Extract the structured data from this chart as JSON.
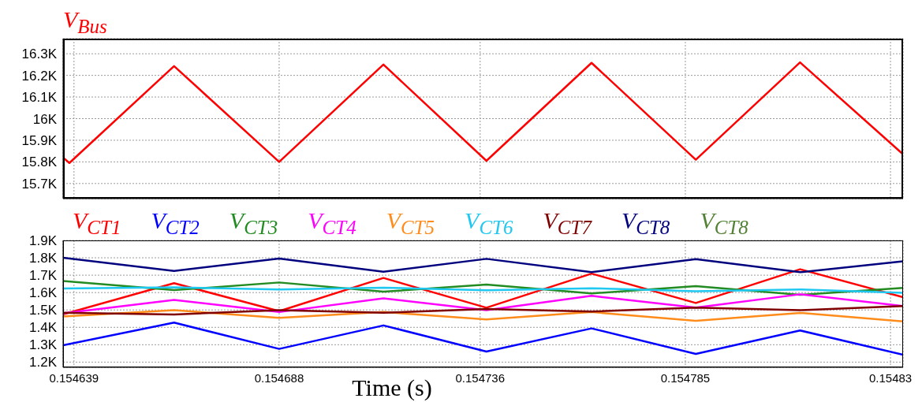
{
  "chart_data": [
    {
      "type": "line",
      "title": "V$_{Bus}$",
      "x": [
        0.1546364,
        0.1546379,
        0.1546629,
        0.154688,
        0.1547129,
        0.1547375,
        0.1547626,
        0.1547875,
        0.1548124,
        0.154837
      ],
      "series": [
        {
          "color": "#ff0000",
          "values": [
            15820,
            15795,
            16243,
            15800,
            16250,
            15805,
            16258,
            15810,
            16260,
            15835
          ]
        }
      ],
      "xlim": [
        0.1546364,
        0.154837
      ],
      "xticks": [
        0.154639,
        0.154688,
        0.154736,
        0.154785,
        0.154834
      ],
      "ylim": [
        15630,
        16370
      ],
      "yticks": [
        {
          "value": 15700,
          "label": "15.7K"
        },
        {
          "value": 15800,
          "label": "15.8K"
        },
        {
          "value": 15900,
          "label": "15.9K"
        },
        {
          "value": 16000,
          "label": "16K"
        },
        {
          "value": 16100,
          "label": "16.1K"
        },
        {
          "value": 16200,
          "label": "16.2K"
        },
        {
          "value": 16300,
          "label": "16.3K"
        }
      ],
      "grid": true,
      "tick_labels": "y"
    },
    {
      "type": "line",
      "xlabel": "Time (s)",
      "x": [
        0.1546364,
        0.1546629,
        0.154688,
        0.1547129,
        0.1547375,
        0.1547626,
        0.1547875,
        0.1548124,
        0.154837
      ],
      "series": [
        {
          "name": "V$_{CT1}$",
          "color": "#ff0000",
          "values": [
            1475,
            1654,
            1493,
            1684,
            1513,
            1709,
            1540,
            1734,
            1573
          ]
        },
        {
          "name": "V$_{CT2}$",
          "color": "#0000ff",
          "values": [
            1297,
            1427,
            1276,
            1411,
            1261,
            1394,
            1247,
            1382,
            1242
          ]
        },
        {
          "name": "V$_{CT3}$",
          "color": "#228b22",
          "values": [
            1666,
            1614,
            1658,
            1605,
            1646,
            1595,
            1637,
            1587,
            1627
          ]
        },
        {
          "name": "V$_{CT4}$",
          "color": "#ff00ff",
          "values": [
            1481,
            1558,
            1488,
            1567,
            1499,
            1581,
            1513,
            1590,
            1522
          ]
        },
        {
          "name": "V$_{CT5}$",
          "color": "#ff8c1a",
          "values": [
            1462,
            1499,
            1454,
            1488,
            1445,
            1488,
            1437,
            1483,
            1434
          ]
        },
        {
          "name": "V$_{CT6}$",
          "color": "#1ec8f0",
          "values": [
            1623,
            1630,
            1618,
            1628,
            1613,
            1625,
            1607,
            1618,
            1598
          ]
        },
        {
          "name": "V$_{CT7}$",
          "color": "#800000",
          "values": [
            1484,
            1474,
            1499,
            1484,
            1505,
            1491,
            1513,
            1499,
            1522
          ]
        },
        {
          "name": "V$_{CT8}$",
          "color": "#00007f",
          "values": [
            1800,
            1724,
            1796,
            1720,
            1794,
            1717,
            1792,
            1717,
            1780
          ]
        }
      ],
      "annotations": [
        "V$_{CT8}$"
      ],
      "xlim": [
        0.1546364,
        0.154837
      ],
      "xticks": [
        0.154639,
        0.154688,
        0.154736,
        0.154785,
        {
          "value": 0.154834,
          "label": "0.15483"
        }
      ],
      "ylim": [
        1170,
        1900
      ],
      "yticks": [
        {
          "value": 1200,
          "label": "1.2K"
        },
        {
          "value": 1300,
          "label": "1.3K"
        },
        {
          "value": 1400,
          "label": "1.4K"
        },
        {
          "value": 1500,
          "label": "1.5K"
        },
        {
          "value": 1600,
          "label": "1.6K"
        },
        {
          "value": 1700,
          "label": "1.7K"
        },
        {
          "value": 1800,
          "label": "1.8K"
        },
        {
          "value": 1900,
          "label": "1.9K"
        }
      ],
      "grid": true,
      "legend": "top"
    }
  ]
}
